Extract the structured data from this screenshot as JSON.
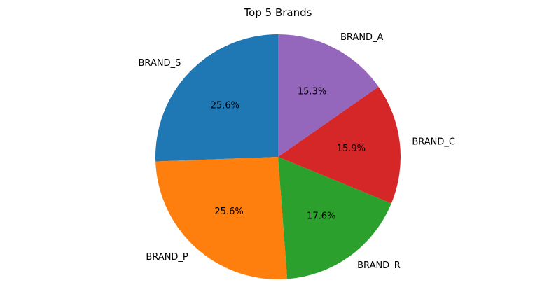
{
  "chart_data": {
    "type": "pie",
    "title": "Top 5 Brands",
    "start_angle_deg": 90,
    "direction": "counterclockwise",
    "slices": [
      {
        "label": "BRAND_S",
        "value": 25.6,
        "pct_label": "25.6%",
        "color": "#1f77b4"
      },
      {
        "label": "BRAND_P",
        "value": 25.6,
        "pct_label": "25.6%",
        "color": "#ff7f0e"
      },
      {
        "label": "BRAND_R",
        "value": 17.6,
        "pct_label": "17.6%",
        "color": "#2ca02c"
      },
      {
        "label": "BRAND_C",
        "value": 15.9,
        "pct_label": "15.9%",
        "color": "#d62728"
      },
      {
        "label": "BRAND_A",
        "value": 15.3,
        "pct_label": "15.3%",
        "color": "#9467bd"
      }
    ]
  }
}
